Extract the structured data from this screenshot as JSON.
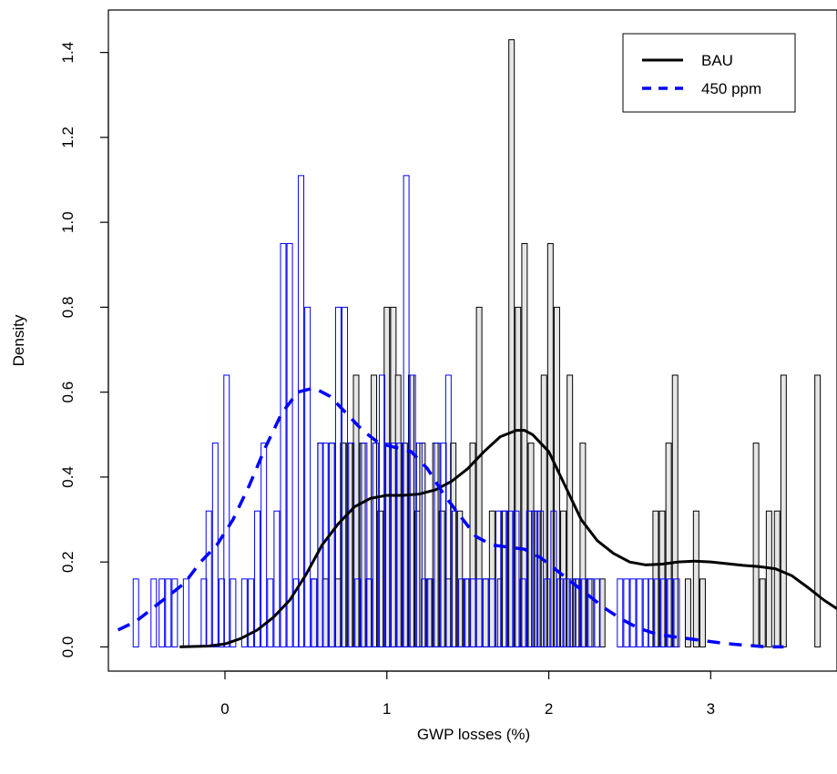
{
  "chart_data": {
    "type": "bar",
    "title": "",
    "xlabel": "GWP losses (%)",
    "ylabel": "Density",
    "xlim": [
      -0.72,
      3.78
    ],
    "ylim": [
      -0.057,
      1.5
    ],
    "xticks": [
      0,
      1,
      2,
      3
    ],
    "yticks": [
      0.0,
      0.2,
      0.4,
      0.6,
      0.8,
      1.0,
      1.2,
      1.4
    ],
    "ytick_labels": [
      "0.0",
      "0.2",
      "0.4",
      "0.6",
      "0.8",
      "1.0",
      "1.2",
      "1.4"
    ],
    "legend_position": "top-right",
    "bin_width": 0.0336,
    "series": [
      {
        "name": "BAU",
        "kind": "histogram",
        "fill_color": "#e6e6e6",
        "stroke_color": "#000000",
        "line_style": "solid",
        "bins": [
          [
            0.55,
            0.16
          ],
          [
            0.59,
            0.48
          ],
          [
            0.62,
            0.16
          ],
          [
            0.66,
            0.48
          ],
          [
            0.7,
            0.16
          ],
          [
            0.73,
            0.48
          ],
          [
            0.77,
            0.48
          ],
          [
            0.81,
            0.64
          ],
          [
            0.85,
            0.48
          ],
          [
            0.89,
            0.16
          ],
          [
            0.92,
            0.64
          ],
          [
            0.96,
            0.32
          ],
          [
            1.0,
            0.8
          ],
          [
            1.04,
            0.8
          ],
          [
            1.07,
            0.64
          ],
          [
            1.11,
            0.48
          ],
          [
            1.15,
            0.64
          ],
          [
            1.19,
            0.32
          ],
          [
            1.22,
            0.48
          ],
          [
            1.26,
            0.16
          ],
          [
            1.3,
            0.48
          ],
          [
            1.34,
            0.32
          ],
          [
            1.38,
            0.16
          ],
          [
            1.41,
            0.48
          ],
          [
            1.45,
            0.32
          ],
          [
            1.49,
            0.16
          ],
          [
            1.53,
            0.48
          ],
          [
            1.57,
            0.8
          ],
          [
            1.61,
            0.16
          ],
          [
            1.65,
            0.32
          ],
          [
            1.7,
            0.16
          ],
          [
            1.73,
            0.32
          ],
          [
            1.77,
            1.43
          ],
          [
            1.81,
            0.8
          ],
          [
            1.85,
            0.95
          ],
          [
            1.89,
            0.48
          ],
          [
            1.93,
            0.32
          ],
          [
            1.97,
            0.64
          ],
          [
            2.01,
            0.95
          ],
          [
            2.05,
            0.8
          ],
          [
            2.09,
            0.32
          ],
          [
            2.13,
            0.64
          ],
          [
            2.17,
            0.16
          ],
          [
            2.21,
            0.48
          ],
          [
            2.25,
            0.16
          ],
          [
            2.33,
            0.16
          ],
          [
            2.66,
            0.32
          ],
          [
            2.7,
            0.32
          ],
          [
            2.74,
            0.48
          ],
          [
            2.78,
            0.64
          ],
          [
            2.86,
            0.16
          ],
          [
            2.91,
            0.32
          ],
          [
            2.95,
            0.16
          ],
          [
            3.28,
            0.48
          ],
          [
            3.32,
            0.16
          ],
          [
            3.36,
            0.32
          ],
          [
            3.41,
            0.32
          ],
          [
            3.45,
            0.64
          ],
          [
            3.66,
            0.64
          ]
        ],
        "density_curve": [
          [
            -0.28,
            0.0
          ],
          [
            -0.1,
            0.002
          ],
          [
            0.0,
            0.007
          ],
          [
            0.1,
            0.02
          ],
          [
            0.2,
            0.04
          ],
          [
            0.3,
            0.07
          ],
          [
            0.4,
            0.11
          ],
          [
            0.5,
            0.17
          ],
          [
            0.6,
            0.24
          ],
          [
            0.7,
            0.29
          ],
          [
            0.8,
            0.33
          ],
          [
            0.9,
            0.35
          ],
          [
            1.0,
            0.357
          ],
          [
            1.1,
            0.357
          ],
          [
            1.2,
            0.36
          ],
          [
            1.3,
            0.37
          ],
          [
            1.4,
            0.39
          ],
          [
            1.5,
            0.42
          ],
          [
            1.6,
            0.46
          ],
          [
            1.7,
            0.495
          ],
          [
            1.8,
            0.51
          ],
          [
            1.85,
            0.51
          ],
          [
            1.9,
            0.5
          ],
          [
            2.0,
            0.46
          ],
          [
            2.1,
            0.38
          ],
          [
            2.2,
            0.3
          ],
          [
            2.3,
            0.25
          ],
          [
            2.4,
            0.22
          ],
          [
            2.5,
            0.2
          ],
          [
            2.6,
            0.193
          ],
          [
            2.7,
            0.195
          ],
          [
            2.8,
            0.2
          ],
          [
            2.9,
            0.202
          ],
          [
            3.0,
            0.2
          ],
          [
            3.1,
            0.196
          ],
          [
            3.2,
            0.192
          ],
          [
            3.3,
            0.189
          ],
          [
            3.4,
            0.184
          ],
          [
            3.5,
            0.168
          ],
          [
            3.6,
            0.14
          ],
          [
            3.7,
            0.11
          ],
          [
            3.78,
            0.09
          ]
        ]
      },
      {
        "name": "450 ppm",
        "kind": "histogram",
        "fill_color": "none",
        "stroke_color": "#0000ff",
        "line_style": "dashed",
        "bins": [
          [
            -0.55,
            0.16
          ],
          [
            -0.44,
            0.16
          ],
          [
            -0.39,
            0.16
          ],
          [
            -0.35,
            0.16
          ],
          [
            -0.31,
            0.16
          ],
          [
            -0.24,
            0.16
          ],
          [
            -0.13,
            0.16
          ],
          [
            -0.1,
            0.32
          ],
          [
            -0.06,
            0.48
          ],
          [
            -0.02,
            0.16
          ],
          [
            0.01,
            0.64
          ],
          [
            0.05,
            0.16
          ],
          [
            0.12,
            0.16
          ],
          [
            0.16,
            0.16
          ],
          [
            0.2,
            0.32
          ],
          [
            0.24,
            0.48
          ],
          [
            0.28,
            0.16
          ],
          [
            0.32,
            0.32
          ],
          [
            0.36,
            0.95
          ],
          [
            0.4,
            0.95
          ],
          [
            0.44,
            0.16
          ],
          [
            0.47,
            1.11
          ],
          [
            0.51,
            0.8
          ],
          [
            0.55,
            0.16
          ],
          [
            0.59,
            0.48
          ],
          [
            0.62,
            0.48
          ],
          [
            0.66,
            0.48
          ],
          [
            0.7,
            0.8
          ],
          [
            0.74,
            0.8
          ],
          [
            0.78,
            0.48
          ],
          [
            0.82,
            0.16
          ],
          [
            0.86,
            0.48
          ],
          [
            0.89,
            0.16
          ],
          [
            0.93,
            0.48
          ],
          [
            0.97,
            0.64
          ],
          [
            1.01,
            0.48
          ],
          [
            1.04,
            0.48
          ],
          [
            1.08,
            0.48
          ],
          [
            1.12,
            1.11
          ],
          [
            1.16,
            0.64
          ],
          [
            1.2,
            0.48
          ],
          [
            1.23,
            0.16
          ],
          [
            1.27,
            0.16
          ],
          [
            1.31,
            0.48
          ],
          [
            1.35,
            0.48
          ],
          [
            1.38,
            0.64
          ],
          [
            1.42,
            0.32
          ],
          [
            1.46,
            0.16
          ],
          [
            1.5,
            0.16
          ],
          [
            1.53,
            0.16
          ],
          [
            1.57,
            0.16
          ],
          [
            1.61,
            0.16
          ],
          [
            1.65,
            0.16
          ],
          [
            1.69,
            0.32
          ],
          [
            1.72,
            0.32
          ],
          [
            1.76,
            0.32
          ],
          [
            1.8,
            0.32
          ],
          [
            1.84,
            0.16
          ],
          [
            1.88,
            0.32
          ],
          [
            1.91,
            0.32
          ],
          [
            1.95,
            0.32
          ],
          [
            1.99,
            0.16
          ],
          [
            2.03,
            0.32
          ],
          [
            2.07,
            0.16
          ],
          [
            2.11,
            0.16
          ],
          [
            2.15,
            0.16
          ],
          [
            2.18,
            0.16
          ],
          [
            2.22,
            0.16
          ],
          [
            2.26,
            0.16
          ],
          [
            2.3,
            0.16
          ],
          [
            2.44,
            0.16
          ],
          [
            2.48,
            0.16
          ],
          [
            2.52,
            0.16
          ],
          [
            2.56,
            0.16
          ],
          [
            2.6,
            0.16
          ],
          [
            2.63,
            0.16
          ],
          [
            2.67,
            0.16
          ],
          [
            2.71,
            0.16
          ],
          [
            2.75,
            0.16
          ],
          [
            2.79,
            0.16
          ]
        ],
        "density_curve": [
          [
            -0.66,
            0.04
          ],
          [
            -0.55,
            0.06
          ],
          [
            -0.45,
            0.09
          ],
          [
            -0.35,
            0.12
          ],
          [
            -0.25,
            0.15
          ],
          [
            -0.15,
            0.2
          ],
          [
            -0.05,
            0.24
          ],
          [
            0.05,
            0.3
          ],
          [
            0.15,
            0.38
          ],
          [
            0.25,
            0.47
          ],
          [
            0.35,
            0.55
          ],
          [
            0.45,
            0.6
          ],
          [
            0.55,
            0.61
          ],
          [
            0.65,
            0.59
          ],
          [
            0.75,
            0.55
          ],
          [
            0.85,
            0.51
          ],
          [
            0.95,
            0.48
          ],
          [
            1.05,
            0.47
          ],
          [
            1.15,
            0.46
          ],
          [
            1.25,
            0.42
          ],
          [
            1.35,
            0.36
          ],
          [
            1.45,
            0.31
          ],
          [
            1.55,
            0.26
          ],
          [
            1.65,
            0.24
          ],
          [
            1.75,
            0.235
          ],
          [
            1.85,
            0.23
          ],
          [
            1.95,
            0.21
          ],
          [
            2.05,
            0.18
          ],
          [
            2.15,
            0.15
          ],
          [
            2.25,
            0.12
          ],
          [
            2.35,
            0.09
          ],
          [
            2.45,
            0.065
          ],
          [
            2.55,
            0.045
          ],
          [
            2.65,
            0.032
          ],
          [
            2.75,
            0.025
          ],
          [
            2.85,
            0.02
          ],
          [
            2.95,
            0.015
          ],
          [
            3.05,
            0.01
          ],
          [
            3.15,
            0.006
          ],
          [
            3.25,
            0.003
          ],
          [
            3.35,
            0.0
          ],
          [
            3.45,
            0.0
          ]
        ]
      }
    ]
  }
}
